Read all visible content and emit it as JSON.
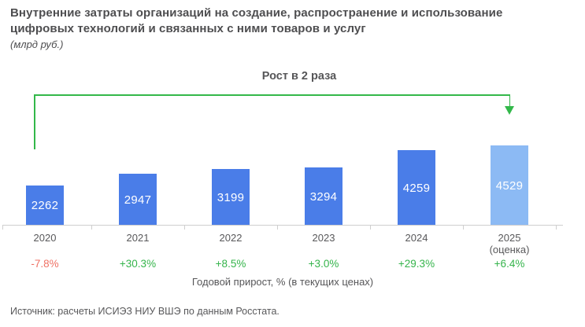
{
  "title": {
    "line1": "Внутренние затраты организаций на создание, распространение и использование",
    "line2": "цифровых технологий и связанных с ними товаров и услуг",
    "unit": "(млрд руб.)"
  },
  "annotation": {
    "growth_label": "Рост в 2 раза"
  },
  "chart_data": {
    "type": "bar",
    "title": "Внутренние затраты организаций на создание, распространение и использование цифровых технологий и связанных с ними товаров и услуг",
    "unit": "млрд руб.",
    "categories": [
      "2020",
      "2021",
      "2022",
      "2023",
      "2024",
      "2025"
    ],
    "category_notes": [
      "",
      "",
      "",
      "",
      "",
      "(оценка)"
    ],
    "values": [
      2262,
      2947,
      3199,
      3294,
      4259,
      4529
    ],
    "growth_labels": [
      "-7.8%",
      "+30.3%",
      "+8.5%",
      "+3.0%",
      "+29.3%",
      "+6.4%"
    ],
    "annual_growth_pct": [
      -7.8,
      30.3,
      8.5,
      3.0,
      29.3,
      6.4
    ],
    "estimate_index": 5,
    "annotation": "Рост в 2 раза",
    "growth_axis_caption": "Годовой прирост, % (в текущих ценах)",
    "ylim": [
      0,
      4529
    ],
    "grid": false,
    "legend": false
  },
  "footer": {
    "caption": "Годовой прирост, % (в текущих ценах)",
    "source": "Источник: расчеты ИСИЭЗ НИУ ВШЭ по данным Росстата."
  },
  "colors": {
    "bar": "#4a7de8",
    "bar_estimate": "#8cbaf4",
    "growth_positive": "#35b44b",
    "growth_negative": "#ef7265",
    "bracket_arrow": "#33b84a",
    "axis": "#cfcfcf"
  }
}
